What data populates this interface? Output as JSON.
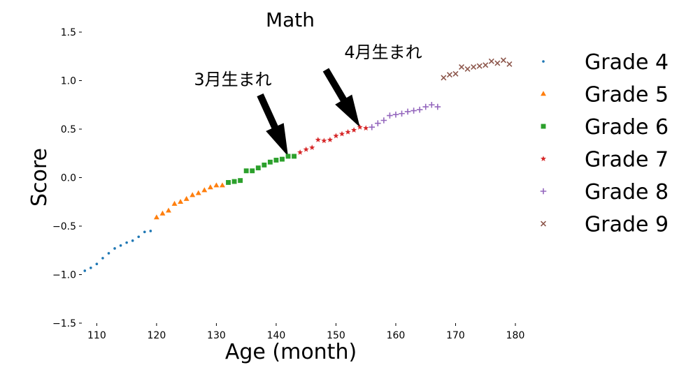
{
  "chart_data": {
    "type": "scatter",
    "title": "Math",
    "xlabel": "Age (month)",
    "ylabel": "Score",
    "xlim": [
      107.5,
      180
    ],
    "ylim": [
      -1.5,
      1.5
    ],
    "x_ticks": [
      "110",
      "120",
      "130",
      "140",
      "150",
      "160",
      "170",
      "180"
    ],
    "y_ticks": [
      "−1.5",
      "−1.0",
      "−0.5",
      "0.0",
      "0.5",
      "1.0",
      "1.5"
    ],
    "grid": false,
    "legend_position": "right",
    "series": [
      {
        "name": "Grade 4",
        "marker": "dot",
        "color": "#1f77b4",
        "x": [
          108,
          109,
          110,
          111,
          112,
          113,
          114,
          115,
          116,
          117,
          118,
          119
        ],
        "y": [
          -0.96,
          -0.93,
          -0.89,
          -0.83,
          -0.78,
          -0.73,
          -0.7,
          -0.67,
          -0.65,
          -0.61,
          -0.56,
          -0.55
        ]
      },
      {
        "name": "Grade 5",
        "marker": "triangle",
        "color": "#ff7f0e",
        "x": [
          120,
          121,
          122,
          123,
          124,
          125,
          126,
          127,
          128,
          129,
          130,
          131
        ],
        "y": [
          -0.41,
          -0.37,
          -0.34,
          -0.27,
          -0.25,
          -0.22,
          -0.18,
          -0.16,
          -0.13,
          -0.1,
          -0.08,
          -0.08
        ]
      },
      {
        "name": "Grade 6",
        "marker": "square",
        "color": "#2ca02c",
        "x": [
          132,
          133,
          134,
          135,
          136,
          137,
          138,
          139,
          140,
          141,
          142,
          143
        ],
        "y": [
          -0.05,
          -0.04,
          -0.03,
          0.07,
          0.07,
          0.1,
          0.13,
          0.16,
          0.18,
          0.19,
          0.22,
          0.22
        ]
      },
      {
        "name": "Grade 7",
        "marker": "star",
        "color": "#d62728",
        "x": [
          144,
          145,
          146,
          147,
          148,
          149,
          150,
          151,
          152,
          153,
          154,
          155
        ],
        "y": [
          0.26,
          0.29,
          0.31,
          0.39,
          0.38,
          0.39,
          0.43,
          0.45,
          0.47,
          0.49,
          0.52,
          0.51
        ]
      },
      {
        "name": "Grade 8",
        "marker": "plus",
        "color": "#9467bd",
        "x": [
          156,
          157,
          158,
          159,
          160,
          161,
          162,
          163,
          164,
          165,
          166,
          167
        ],
        "y": [
          0.52,
          0.56,
          0.59,
          0.64,
          0.65,
          0.66,
          0.68,
          0.69,
          0.7,
          0.73,
          0.75,
          0.73
        ]
      },
      {
        "name": "Grade 9",
        "marker": "x",
        "color": "#8c564b",
        "x": [
          168,
          169,
          170,
          171,
          172,
          173,
          174,
          175,
          176,
          177,
          178,
          179
        ],
        "y": [
          1.03,
          1.06,
          1.07,
          1.14,
          1.12,
          1.14,
          1.15,
          1.16,
          1.2,
          1.18,
          1.21,
          1.17
        ]
      }
    ],
    "annotations": [
      {
        "text": "3月生まれ",
        "x": 142,
        "y": 0.22
      },
      {
        "text": "4月生まれ",
        "x": 154,
        "y": 0.52
      }
    ]
  }
}
